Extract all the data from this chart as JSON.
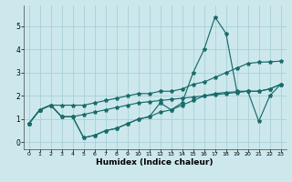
{
  "xlabel": "Humidex (Indice chaleur)",
  "background_color": "#cce8ec",
  "grid_color": "#aad0d8",
  "line_color": "#1a6b6b",
  "xlim": [
    -0.5,
    23.5
  ],
  "ylim": [
    -0.3,
    5.9
  ],
  "xticks": [
    0,
    1,
    2,
    3,
    4,
    5,
    6,
    7,
    8,
    9,
    10,
    11,
    12,
    13,
    14,
    15,
    16,
    17,
    18,
    19,
    20,
    21,
    22,
    23
  ],
  "yticks": [
    0,
    1,
    2,
    3,
    4,
    5
  ],
  "line1_x": [
    0,
    1,
    2,
    3,
    4,
    5,
    6,
    7,
    8,
    9,
    10,
    11,
    12,
    13,
    14,
    15,
    16,
    17,
    18,
    19,
    20,
    21,
    22,
    23
  ],
  "line1_y": [
    0.8,
    1.4,
    1.6,
    1.1,
    1.1,
    0.2,
    0.3,
    0.5,
    0.6,
    0.8,
    1.0,
    1.1,
    1.7,
    1.4,
    1.7,
    3.0,
    4.0,
    5.4,
    4.7,
    2.2,
    2.2,
    0.9,
    2.0,
    2.5
  ],
  "line2_x": [
    0,
    1,
    2,
    3,
    4,
    5,
    6,
    7,
    8,
    9,
    10,
    11,
    12,
    13,
    14,
    15,
    16,
    17,
    18,
    19,
    20,
    21,
    22,
    23
  ],
  "line2_y": [
    0.8,
    1.4,
    1.6,
    1.6,
    1.6,
    1.6,
    1.7,
    1.8,
    1.9,
    2.0,
    2.1,
    2.1,
    2.2,
    2.2,
    2.3,
    2.5,
    2.6,
    2.8,
    3.0,
    3.2,
    3.4,
    3.45,
    3.47,
    3.5
  ],
  "line3_x": [
    0,
    1,
    2,
    3,
    4,
    5,
    6,
    7,
    8,
    9,
    10,
    11,
    12,
    13,
    14,
    15,
    16,
    17,
    18,
    19,
    20,
    21,
    22,
    23
  ],
  "line3_y": [
    0.8,
    1.4,
    1.6,
    1.1,
    1.1,
    1.2,
    1.3,
    1.4,
    1.5,
    1.6,
    1.7,
    1.75,
    1.8,
    1.85,
    1.9,
    1.95,
    2.0,
    2.05,
    2.1,
    2.15,
    2.2,
    2.2,
    2.3,
    2.5
  ],
  "line4_x": [
    0,
    1,
    2,
    3,
    4,
    5,
    6,
    7,
    8,
    9,
    10,
    11,
    12,
    13,
    14,
    15,
    16,
    17,
    18,
    19,
    20,
    21,
    22,
    23
  ],
  "line4_y": [
    0.8,
    1.4,
    1.6,
    1.1,
    1.1,
    0.2,
    0.3,
    0.5,
    0.6,
    0.8,
    1.0,
    1.1,
    1.3,
    1.4,
    1.6,
    1.8,
    2.0,
    2.1,
    2.15,
    2.18,
    2.2,
    2.2,
    2.3,
    2.5
  ]
}
